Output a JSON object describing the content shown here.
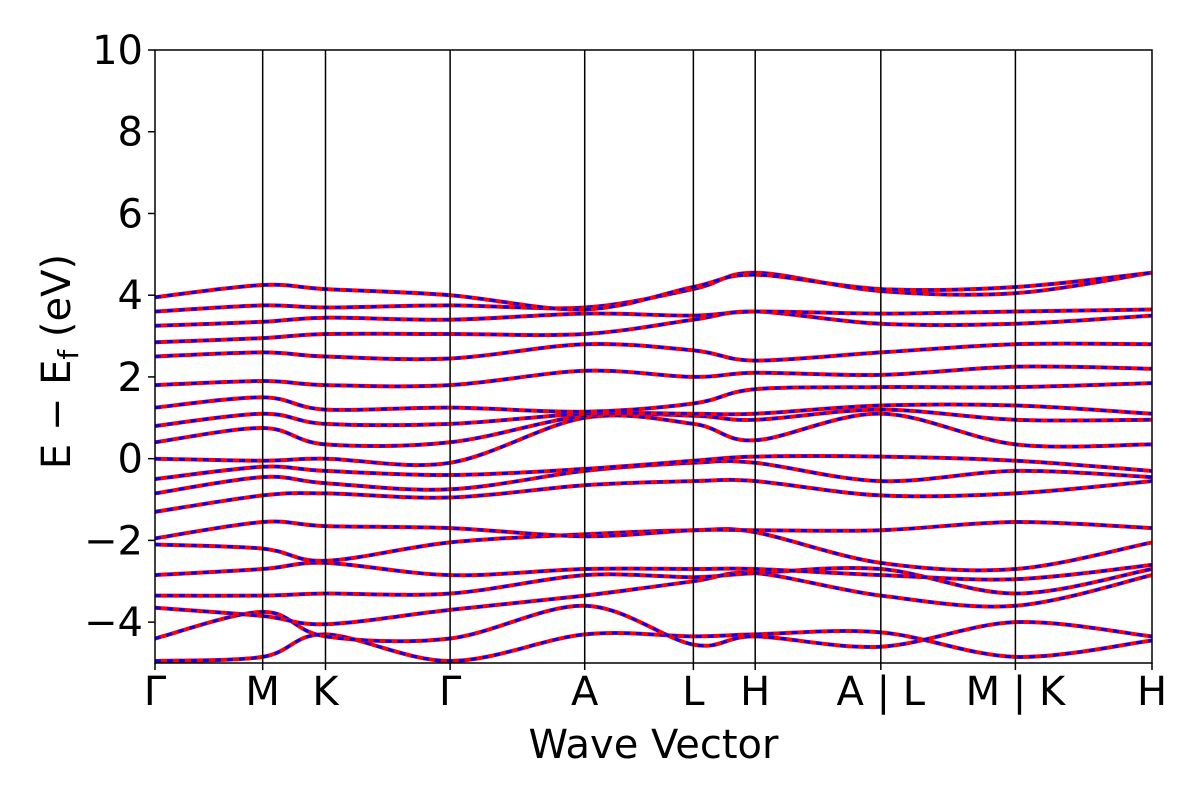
{
  "chart_data": {
    "type": "line",
    "title": "",
    "xlabel": "Wave Vector",
    "ylabel": "E − E_f (eV)",
    "ylabel_parts": {
      "main": "E − E",
      "sub": "f",
      "unit": " (eV)"
    },
    "ylim": [
      -5,
      10
    ],
    "yticks": [
      -4,
      -2,
      0,
      2,
      4,
      6,
      8,
      10
    ],
    "ytick_labels": [
      "−4",
      "−2",
      "0",
      "2",
      "4",
      "6",
      "8",
      "10"
    ],
    "xlim": [
      0,
      10
    ],
    "kpoints": [
      {
        "label": "Γ",
        "x": 0.0
      },
      {
        "label": "M",
        "x": 1.08
      },
      {
        "label": "K",
        "x": 1.71
      },
      {
        "label": "Γ",
        "x": 2.96
      },
      {
        "label": "A",
        "x": 4.31
      },
      {
        "label": "L",
        "x": 5.4
      },
      {
        "label": "H",
        "x": 6.02
      },
      {
        "label": "A | L",
        "x": 7.28
      },
      {
        "label": "M | K",
        "x": 8.63
      },
      {
        "label": "H",
        "x": 10.0
      }
    ],
    "series": [
      {
        "color": "#ff0000",
        "style": "solid"
      },
      {
        "color": "#0000ff",
        "style": "dashed"
      }
    ],
    "bands": [
      [
        [
          0,
          -4.95
        ],
        [
          1.08,
          -4.85
        ],
        [
          1.71,
          -4.3
        ],
        [
          2.96,
          -4.95
        ],
        [
          4.31,
          -4.3
        ],
        [
          5.4,
          -4.35
        ],
        [
          6.02,
          -4.3
        ],
        [
          7.28,
          -4.25
        ],
        [
          8.63,
          -4.85
        ],
        [
          10,
          -4.45
        ]
      ],
      [
        [
          0,
          -4.4
        ],
        [
          1.08,
          -3.75
        ],
        [
          1.71,
          -4.35
        ],
        [
          2.96,
          -4.4
        ],
        [
          4.31,
          -3.6
        ],
        [
          5.4,
          -4.55
        ],
        [
          6.02,
          -4.35
        ],
        [
          7.28,
          -4.6
        ],
        [
          8.63,
          -4.0
        ],
        [
          10,
          -4.35
        ]
      ],
      [
        [
          0,
          -3.65
        ],
        [
          1.08,
          -3.85
        ],
        [
          1.71,
          -4.05
        ],
        [
          2.96,
          -3.7
        ],
        [
          4.31,
          -3.35
        ],
        [
          5.4,
          -3.0
        ],
        [
          6.02,
          -2.8
        ],
        [
          7.28,
          -3.35
        ],
        [
          8.63,
          -3.6
        ],
        [
          10,
          -2.85
        ]
      ],
      [
        [
          0,
          -3.35
        ],
        [
          1.08,
          -3.35
        ],
        [
          1.71,
          -3.3
        ],
        [
          2.96,
          -3.3
        ],
        [
          4.31,
          -2.85
        ],
        [
          5.4,
          -2.9
        ],
        [
          6.02,
          -2.8
        ],
        [
          7.28,
          -2.7
        ],
        [
          8.63,
          -3.3
        ],
        [
          10,
          -2.7
        ]
      ],
      [
        [
          0,
          -2.85
        ],
        [
          1.08,
          -2.7
        ],
        [
          1.71,
          -2.55
        ],
        [
          2.96,
          -2.85
        ],
        [
          4.31,
          -2.7
        ],
        [
          5.4,
          -2.7
        ],
        [
          6.02,
          -2.7
        ],
        [
          7.28,
          -2.85
        ],
        [
          8.63,
          -2.95
        ],
        [
          10,
          -2.6
        ]
      ],
      [
        [
          0,
          -2.1
        ],
        [
          1.08,
          -2.2
        ],
        [
          1.71,
          -2.5
        ],
        [
          2.96,
          -2.05
        ],
        [
          4.31,
          -1.85
        ],
        [
          5.4,
          -1.75
        ],
        [
          6.02,
          -1.8
        ],
        [
          7.28,
          -2.55
        ],
        [
          8.63,
          -2.7
        ],
        [
          10,
          -2.05
        ]
      ],
      [
        [
          0,
          -1.95
        ],
        [
          1.08,
          -1.55
        ],
        [
          1.71,
          -1.65
        ],
        [
          2.96,
          -1.7
        ],
        [
          4.31,
          -1.9
        ],
        [
          5.4,
          -1.75
        ],
        [
          6.02,
          -1.75
        ],
        [
          7.28,
          -1.75
        ],
        [
          8.63,
          -1.55
        ],
        [
          10,
          -1.7
        ]
      ],
      [
        [
          0,
          -1.3
        ],
        [
          1.08,
          -0.9
        ],
        [
          1.71,
          -0.85
        ],
        [
          2.96,
          -0.95
        ],
        [
          4.31,
          -0.65
        ],
        [
          5.4,
          -0.55
        ],
        [
          6.02,
          -0.55
        ],
        [
          7.28,
          -0.9
        ],
        [
          8.63,
          -0.85
        ],
        [
          10,
          -0.55
        ]
      ],
      [
        [
          0,
          -0.85
        ],
        [
          1.08,
          -0.45
        ],
        [
          1.71,
          -0.6
        ],
        [
          2.96,
          -0.75
        ],
        [
          4.31,
          -0.3
        ],
        [
          5.4,
          -0.1
        ],
        [
          6.02,
          -0.1
        ],
        [
          7.28,
          -0.55
        ],
        [
          8.63,
          -0.3
        ],
        [
          10,
          -0.45
        ]
      ],
      [
        [
          0,
          -0.5
        ],
        [
          1.08,
          -0.2
        ],
        [
          1.71,
          -0.3
        ],
        [
          2.96,
          -0.4
        ],
        [
          4.31,
          -0.25
        ],
        [
          5.4,
          -0.05
        ],
        [
          6.02,
          0.05
        ],
        [
          7.28,
          0.05
        ],
        [
          8.63,
          -0.05
        ],
        [
          10,
          -0.3
        ]
      ],
      [
        [
          0,
          0.0
        ],
        [
          1.08,
          -0.05
        ],
        [
          1.71,
          0.0
        ],
        [
          2.96,
          -0.1
        ],
        [
          4.31,
          1.0
        ],
        [
          5.4,
          0.85
        ],
        [
          6.02,
          0.45
        ],
        [
          7.28,
          1.1
        ],
        [
          8.63,
          0.35
        ],
        [
          10,
          0.35
        ]
      ],
      [
        [
          0,
          0.4
        ],
        [
          1.08,
          0.75
        ],
        [
          1.71,
          0.35
        ],
        [
          2.96,
          0.4
        ],
        [
          4.31,
          1.05
        ],
        [
          5.4,
          1.05
        ],
        [
          6.02,
          0.95
        ],
        [
          7.28,
          1.2
        ],
        [
          8.63,
          0.95
        ],
        [
          10,
          0.95
        ]
      ],
      [
        [
          0,
          0.8
        ],
        [
          1.08,
          1.1
        ],
        [
          1.71,
          0.85
        ],
        [
          2.96,
          0.85
        ],
        [
          4.31,
          1.1
        ],
        [
          5.4,
          1.1
        ],
        [
          6.02,
          1.1
        ],
        [
          7.28,
          1.3
        ],
        [
          8.63,
          1.3
        ],
        [
          10,
          1.1
        ]
      ],
      [
        [
          0,
          1.25
        ],
        [
          1.08,
          1.5
        ],
        [
          1.71,
          1.2
        ],
        [
          2.96,
          1.25
        ],
        [
          4.31,
          1.15
        ],
        [
          5.4,
          1.35
        ],
        [
          6.02,
          1.7
        ],
        [
          7.28,
          1.75
        ],
        [
          8.63,
          1.75
        ],
        [
          10,
          1.85
        ]
      ],
      [
        [
          0,
          1.8
        ],
        [
          1.08,
          1.9
        ],
        [
          1.71,
          1.8
        ],
        [
          2.96,
          1.8
        ],
        [
          4.31,
          2.15
        ],
        [
          5.4,
          2.0
        ],
        [
          6.02,
          2.1
        ],
        [
          7.28,
          2.05
        ],
        [
          8.63,
          2.25
        ],
        [
          10,
          2.2
        ]
      ],
      [
        [
          0,
          2.5
        ],
        [
          1.08,
          2.6
        ],
        [
          1.71,
          2.5
        ],
        [
          2.96,
          2.45
        ],
        [
          4.31,
          2.8
        ],
        [
          5.4,
          2.65
        ],
        [
          6.02,
          2.4
        ],
        [
          7.28,
          2.6
        ],
        [
          8.63,
          2.8
        ],
        [
          10,
          2.8
        ]
      ],
      [
        [
          0,
          2.85
        ],
        [
          1.08,
          2.95
        ],
        [
          1.71,
          3.05
        ],
        [
          2.96,
          3.05
        ],
        [
          4.31,
          3.05
        ],
        [
          5.4,
          3.4
        ],
        [
          6.02,
          3.6
        ],
        [
          7.28,
          3.3
        ],
        [
          8.63,
          3.3
        ],
        [
          10,
          3.5
        ]
      ],
      [
        [
          0,
          3.25
        ],
        [
          1.08,
          3.35
        ],
        [
          1.71,
          3.45
        ],
        [
          2.96,
          3.4
        ],
        [
          4.31,
          3.55
        ],
        [
          5.4,
          3.5
        ],
        [
          6.02,
          3.6
        ],
        [
          7.28,
          3.55
        ],
        [
          8.63,
          3.6
        ],
        [
          10,
          3.65
        ]
      ],
      [
        [
          0,
          3.6
        ],
        [
          1.08,
          3.75
        ],
        [
          1.71,
          3.7
        ],
        [
          2.96,
          3.75
        ],
        [
          4.31,
          3.7
        ],
        [
          5.4,
          4.15
        ],
        [
          6.02,
          4.55
        ],
        [
          7.28,
          4.1
        ],
        [
          8.63,
          4.05
        ],
        [
          10,
          4.55
        ]
      ],
      [
        [
          0,
          3.95
        ],
        [
          1.08,
          4.25
        ],
        [
          1.71,
          4.15
        ],
        [
          2.96,
          4.0
        ],
        [
          4.31,
          3.65
        ],
        [
          5.4,
          4.2
        ],
        [
          6.02,
          4.5
        ],
        [
          7.28,
          4.15
        ],
        [
          8.63,
          4.2
        ],
        [
          10,
          4.55
        ]
      ]
    ]
  }
}
